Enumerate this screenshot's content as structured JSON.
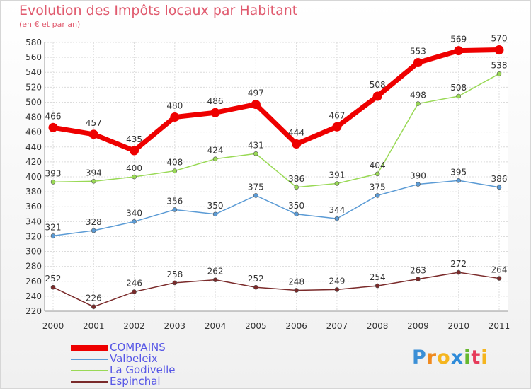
{
  "title": "Evolution des Impôts locaux par Habitant",
  "subtitle": "(en € et par an)",
  "logo": {
    "letters": [
      "P",
      "r",
      "o",
      "x",
      "i",
      "t",
      "i"
    ],
    "colors": [
      "#3b8fd6",
      "#f08a1f",
      "#f5b51e",
      "#2e8bd9",
      "#66b82e",
      "#e63b5a",
      "#f5b51e"
    ]
  },
  "chart_data": {
    "type": "line",
    "x": [
      2000,
      2001,
      2002,
      2003,
      2004,
      2005,
      2006,
      2007,
      2008,
      2009,
      2010,
      2011
    ],
    "ylim": [
      220,
      580
    ],
    "yticks": [
      220,
      240,
      260,
      280,
      300,
      320,
      340,
      360,
      380,
      400,
      420,
      440,
      460,
      480,
      500,
      520,
      540,
      560,
      580
    ],
    "grid": true,
    "legend_position": "bottom-left",
    "series": [
      {
        "name": "COMPAINS",
        "color": "#ee0000",
        "values": [
          466,
          457,
          435,
          480,
          486,
          497,
          444,
          467,
          508,
          553,
          569,
          570
        ]
      },
      {
        "name": "Valbeleix",
        "color": "#5b9bd5",
        "values": [
          321,
          328,
          340,
          356,
          350,
          375,
          350,
          344,
          375,
          390,
          395,
          386
        ]
      },
      {
        "name": "La Godivelle",
        "color": "#99d955",
        "values": [
          393,
          394,
          400,
          408,
          424,
          431,
          386,
          391,
          404,
          498,
          508,
          538
        ]
      },
      {
        "name": "Espinchal",
        "color": "#7a2a2a",
        "values": [
          252,
          226,
          246,
          258,
          262,
          252,
          248,
          249,
          254,
          263,
          272,
          264
        ]
      }
    ]
  }
}
